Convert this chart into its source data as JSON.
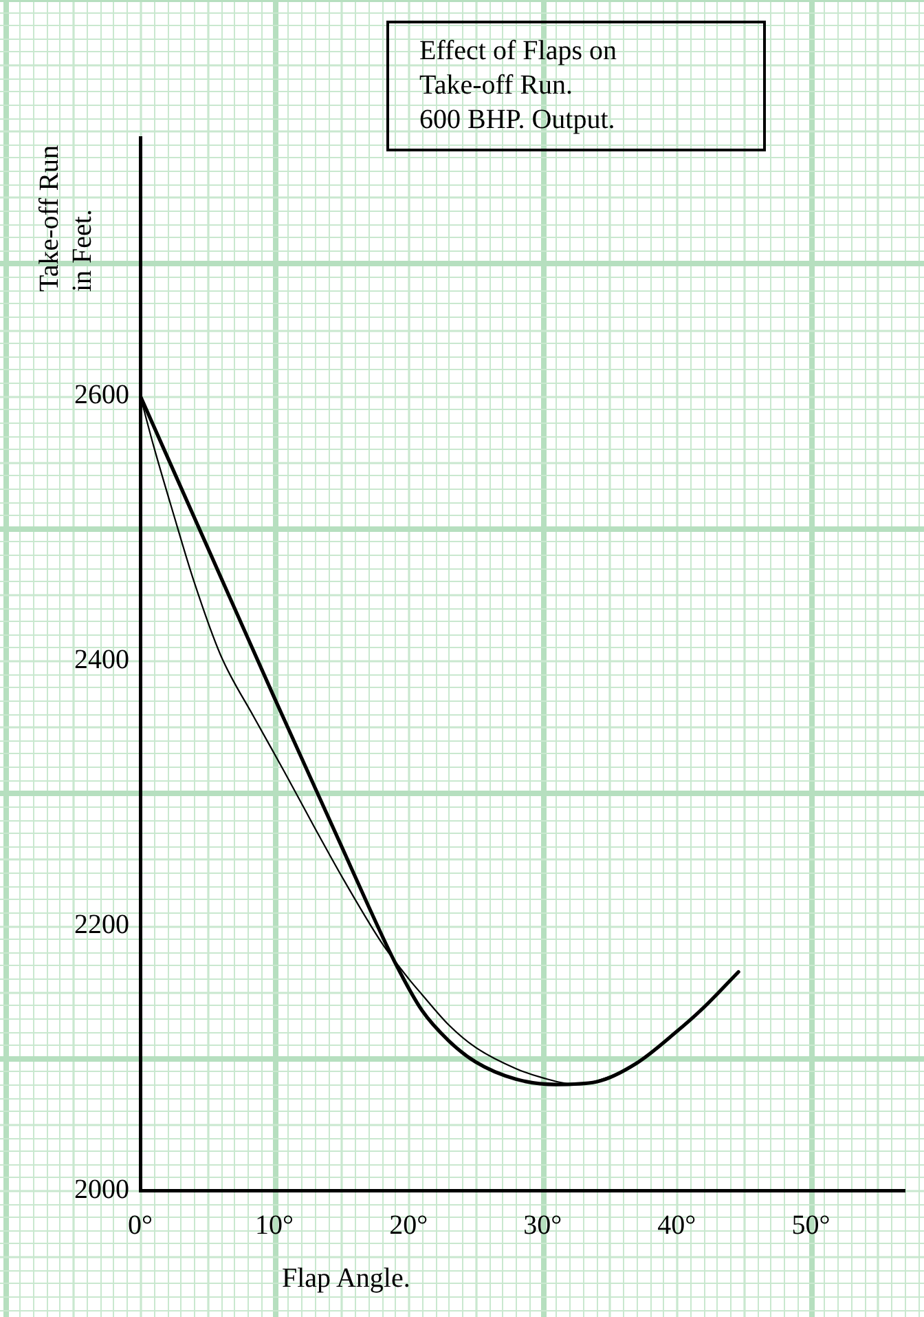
{
  "chart_data": {
    "type": "line",
    "title": "Effect of Flaps on Take-off Run.",
    "subtitle": "600 BHP. Output.",
    "xlabel": "Flap Angle.",
    "ylabel": "Take-off Run in Feet.",
    "series": [
      {
        "color": "#000000",
        "x": [
          0,
          5,
          10,
          15,
          17,
          19,
          21,
          23,
          25,
          28,
          31,
          34,
          37,
          40,
          42,
          44.6
        ],
        "values": [
          2600,
          2486,
          2372,
          2260,
          2215,
          2172,
          2136,
          2113,
          2097,
          2084,
          2080,
          2082,
          2096,
          2120,
          2138,
          2165
        ]
      },
      {
        "color": "#000000",
        "x": [
          0,
          1,
          2.5,
          4,
          6,
          8.5,
          10.7,
          13,
          15.2,
          18,
          20,
          21,
          23,
          25,
          28,
          30,
          32.5,
          35,
          37,
          40,
          42,
          44.6
        ],
        "values": [
          2600,
          2562,
          2510,
          2460,
          2404,
          2357,
          2317,
          2274,
          2234,
          2187,
          2160,
          2148,
          2125,
          2108,
          2092,
          2085,
          2080,
          2086,
          2096,
          2120,
          2138,
          2165
        ]
      }
    ],
    "xlim": [
      0,
      57
    ],
    "ylim": [
      2000,
      2795
    ],
    "xticks": [
      {
        "value": 0,
        "label": "0°"
      },
      {
        "value": 10,
        "label": "10°"
      },
      {
        "value": 20,
        "label": "20°"
      },
      {
        "value": 30,
        "label": "30°"
      },
      {
        "value": 40,
        "label": "40°"
      },
      {
        "value": 50,
        "label": "50°"
      }
    ],
    "yticks": [
      2000,
      2200,
      2400,
      2600
    ],
    "grid": true,
    "legend": false,
    "marker": "none"
  }
}
